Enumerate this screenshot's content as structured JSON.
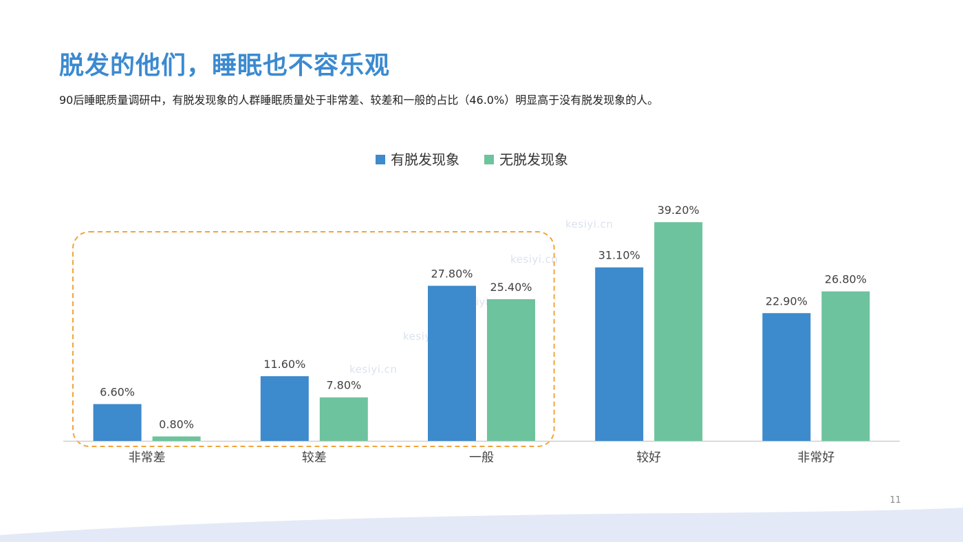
{
  "title": "脱发的他们，睡眠也不容乐观",
  "subtitle": "90后睡眠质量调研中，有脱发现象的人群睡眠质量处于非常差、较差和一般的占比（46.0%）明显高于没有脱发现象的人。",
  "page_number": "11",
  "watermark": "kesiyi.cn",
  "chart_data": {
    "type": "bar",
    "categories": [
      "非常差",
      "较差",
      "一般",
      "较好",
      "非常好"
    ],
    "series": [
      {
        "name": "有脱发现象",
        "values": [
          6.6,
          11.6,
          27.8,
          31.1,
          22.9
        ],
        "labels": [
          "6.60%",
          "11.60%",
          "27.80%",
          "31.10%",
          "22.90%"
        ],
        "color": "#3d8acc"
      },
      {
        "name": "无脱发现象",
        "values": [
          0.8,
          7.8,
          25.4,
          39.2,
          26.8
        ],
        "labels": [
          "0.80%",
          "7.80%",
          "25.40%",
          "39.20%",
          "26.80%"
        ],
        "color": "#6dc39d"
      }
    ],
    "ylim": [
      0,
      45
    ],
    "grid": false,
    "legend": "top-center",
    "highlight": {
      "categories": [
        "非常差",
        "较差",
        "一般"
      ],
      "style": "dashed-rounded",
      "color": "#f0a43a"
    }
  }
}
